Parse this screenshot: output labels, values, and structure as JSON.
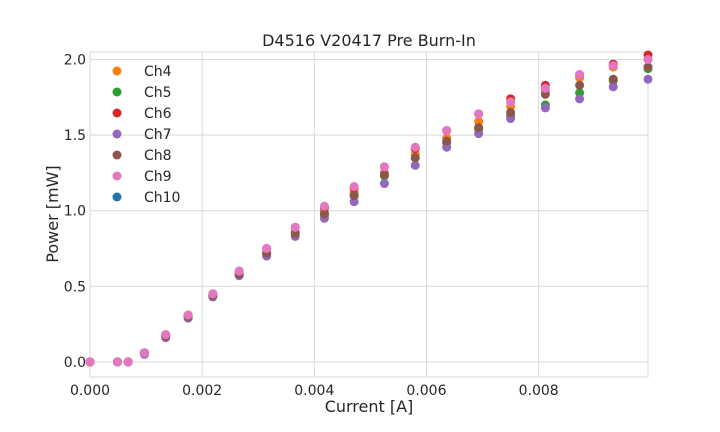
{
  "chart_data": {
    "type": "scatter",
    "title": "D4516 V20417 Pre Burn-In",
    "xlabel": "Current [A]",
    "ylabel": "Power [mW]",
    "xlim": [
      0,
      0.00995
    ],
    "ylim": [
      -0.1,
      2.05
    ],
    "xticks": [
      0,
      0.002,
      0.004,
      0.006,
      0.008
    ],
    "xtick_labels": [
      "0.000",
      "0.002",
      "0.004",
      "0.006",
      "0.008"
    ],
    "yticks": [
      0,
      0.5,
      1.0,
      1.5,
      2.0
    ],
    "ytick_labels": [
      "0.0",
      "0.5",
      "1.0",
      "1.5",
      "2.0"
    ],
    "grid": true,
    "legend_position": "top-left",
    "x": [
      0.0,
      0.00049,
      0.00068,
      0.00097,
      0.00135,
      0.00175,
      0.00219,
      0.00266,
      0.00315,
      0.00366,
      0.00418,
      0.00471,
      0.00525,
      0.0058,
      0.00636,
      0.00693,
      0.0075,
      0.00812,
      0.00873,
      0.00933,
      0.00995
    ],
    "series": [
      {
        "name": "Ch4",
        "color": "#ff7f0e",
        "values": [
          0.0,
          0.0,
          0.0,
          0.06,
          0.17,
          0.3,
          0.44,
          0.58,
          0.72,
          0.86,
          0.99,
          1.12,
          1.25,
          1.37,
          1.48,
          1.59,
          1.69,
          1.79,
          1.88,
          1.95,
          2.0
        ]
      },
      {
        "name": "Ch5",
        "color": "#2ca02c",
        "values": [
          0.0,
          0.0,
          0.0,
          0.06,
          0.17,
          0.29,
          0.44,
          0.58,
          0.71,
          0.85,
          0.97,
          1.1,
          1.23,
          1.35,
          1.45,
          1.54,
          1.63,
          1.7,
          1.78,
          1.86,
          1.94
        ]
      },
      {
        "name": "Ch6",
        "color": "#d62728",
        "values": [
          0.0,
          0.0,
          0.0,
          0.06,
          0.18,
          0.31,
          0.45,
          0.6,
          0.75,
          0.89,
          1.02,
          1.15,
          1.29,
          1.41,
          1.53,
          1.64,
          1.74,
          1.83,
          1.9,
          1.97,
          2.03
        ]
      },
      {
        "name": "Ch7",
        "color": "#9467bd",
        "values": [
          0.0,
          0.0,
          0.0,
          0.05,
          0.16,
          0.29,
          0.43,
          0.57,
          0.7,
          0.83,
          0.95,
          1.06,
          1.18,
          1.3,
          1.42,
          1.51,
          1.61,
          1.68,
          1.74,
          1.82,
          1.87
        ]
      },
      {
        "name": "Ch8",
        "color": "#8c564b",
        "values": [
          0.0,
          0.0,
          0.0,
          0.06,
          0.17,
          0.3,
          0.44,
          0.58,
          0.72,
          0.85,
          0.98,
          1.1,
          1.24,
          1.35,
          1.46,
          1.55,
          1.65,
          1.77,
          1.83,
          1.87,
          1.95
        ]
      },
      {
        "name": "Ch9",
        "color": "#e377c2",
        "values": [
          0.0,
          0.0,
          0.0,
          0.06,
          0.18,
          0.31,
          0.45,
          0.6,
          0.75,
          0.89,
          1.03,
          1.16,
          1.29,
          1.42,
          1.53,
          1.64,
          1.72,
          1.81,
          1.9,
          1.96,
          2.0
        ]
      },
      {
        "name": "Ch10",
        "color": "#1f77b4",
        "values": []
      }
    ]
  }
}
